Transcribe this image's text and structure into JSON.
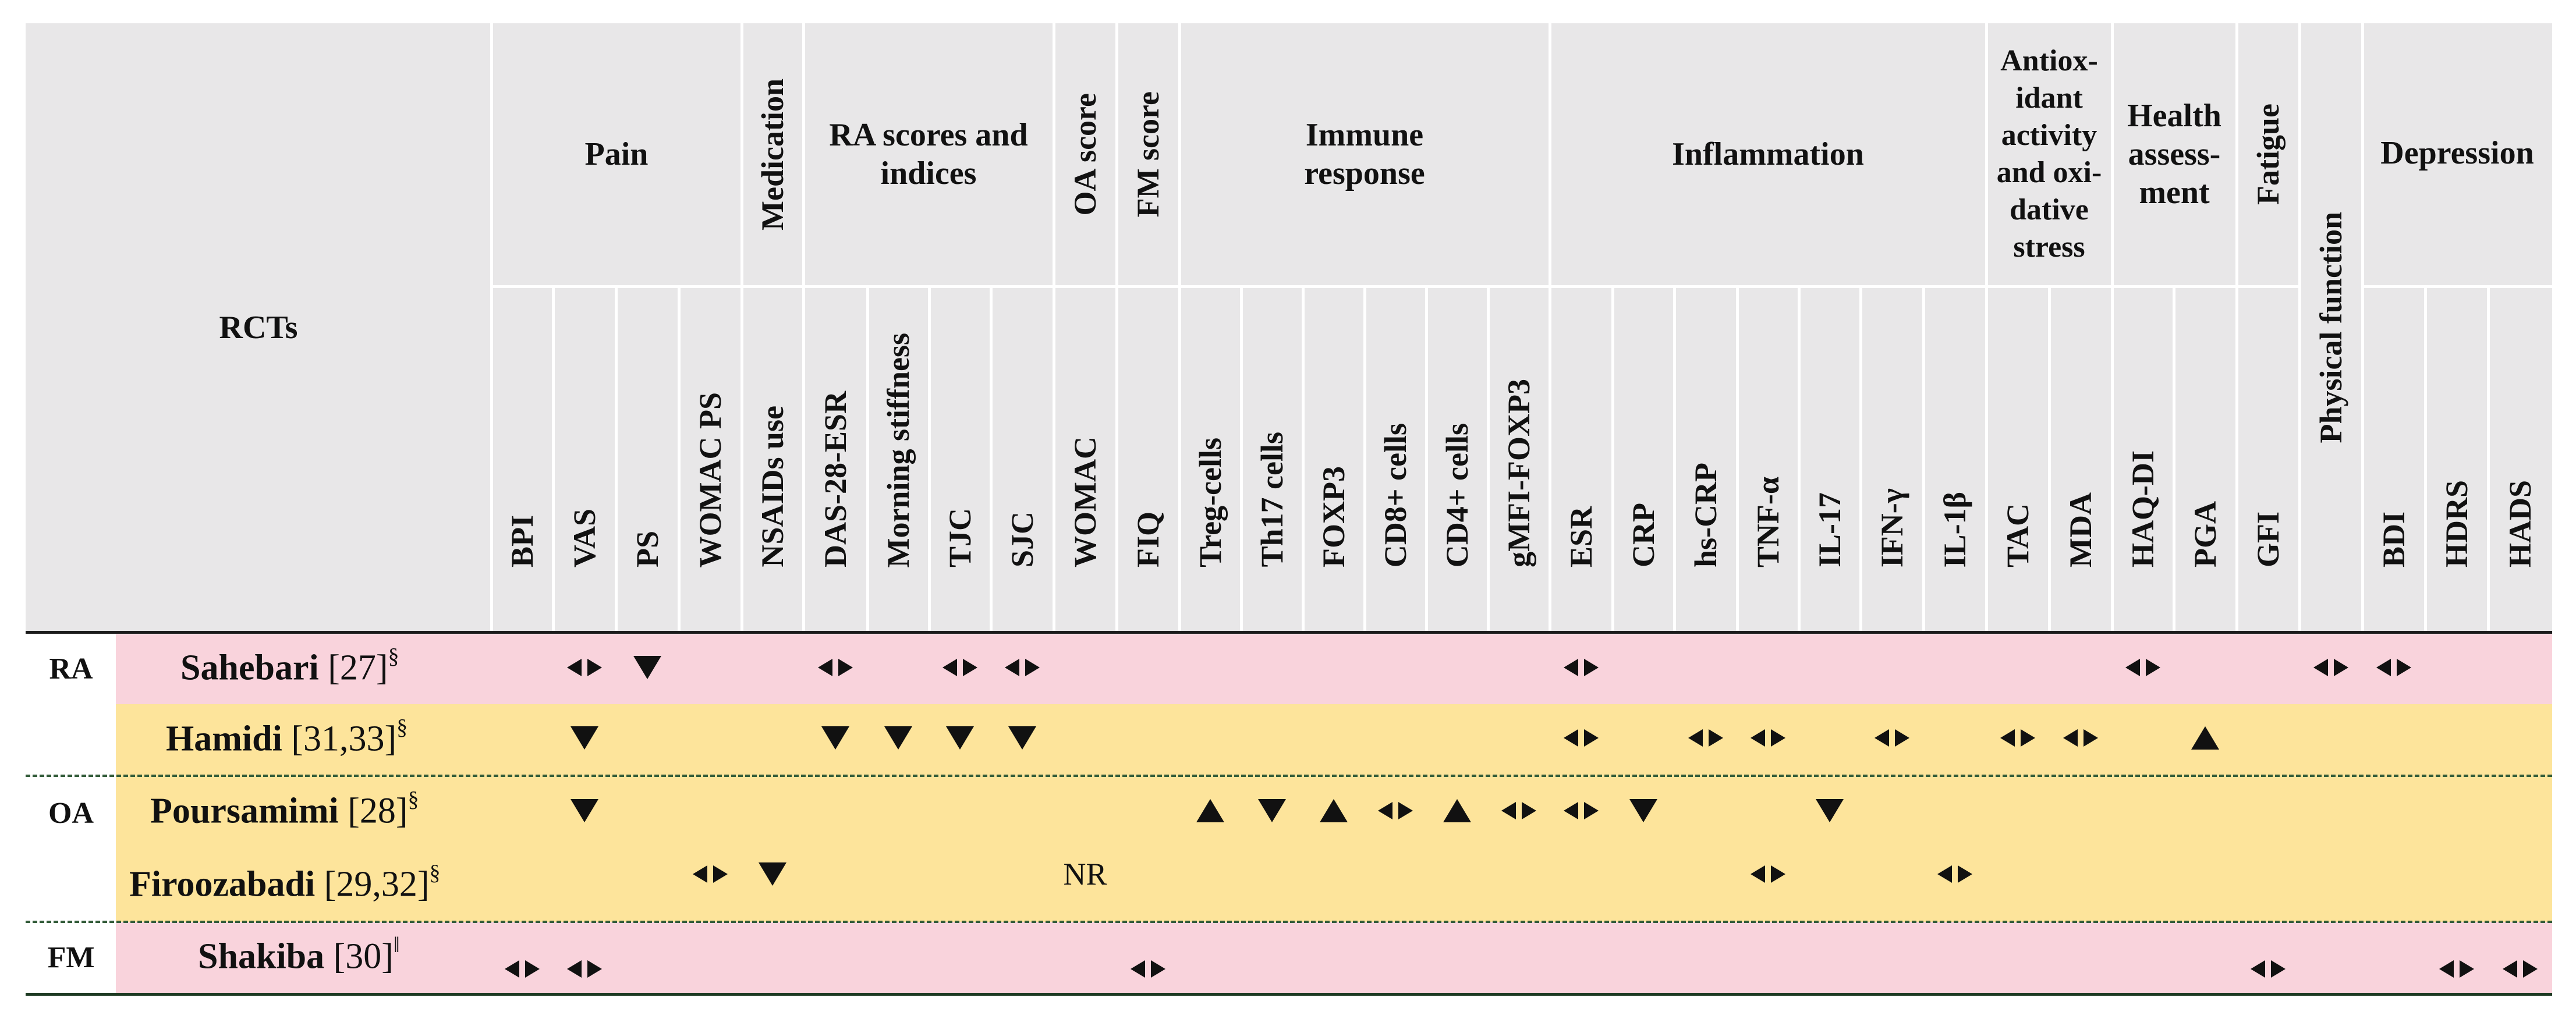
{
  "header": {
    "rcts_label": "RCTs",
    "groups": [
      {
        "key": "pain",
        "label": "Pain"
      },
      {
        "key": "medication",
        "label": "Medication"
      },
      {
        "key": "ra_scores",
        "label": "RA scores and indices"
      },
      {
        "key": "oa_score",
        "label": "OA score"
      },
      {
        "key": "fm_score",
        "label": "FM score"
      },
      {
        "key": "immune",
        "label": "Immune response"
      },
      {
        "key": "inflammation",
        "label": "Inflammation"
      },
      {
        "key": "antiox",
        "label": "Antiox- idant activity and oxi- dative stress"
      },
      {
        "key": "health",
        "label": "Health assess- ment"
      },
      {
        "key": "fatigue",
        "label": "Fatigue"
      },
      {
        "key": "physical",
        "label": "Physical function"
      },
      {
        "key": "depression",
        "label": "Depression"
      }
    ],
    "columns": [
      "BPI",
      "VAS",
      "PS",
      "WOMAC PS",
      "NSAIDs use",
      "DAS-28-ESR",
      "Morning stiffness",
      "TJC",
      "SJC",
      "WOMAC",
      "FIQ",
      "Treg-cells",
      "Th17 cells",
      "FOXP3",
      "CD8+ cells",
      "CD4+ cells",
      "gMFI-FOXP3",
      "ESR",
      "CRP",
      "hs-CRP",
      "TNF-α",
      "IL-17",
      "IFN-γ",
      "IL-1β",
      "TAC",
      "MDA",
      "HAQ-DI",
      "PGA",
      "GFI",
      "BDI",
      "HDRS",
      "HADS"
    ]
  },
  "groups": [
    {
      "label": "RA"
    },
    {
      "label": "OA"
    },
    {
      "label": "FM"
    }
  ],
  "rows": [
    {
      "name": "Sahebari",
      "ref": "[27]",
      "mark": "§"
    },
    {
      "name": "Hamidi",
      "ref": "[31,33]",
      "mark": "§"
    },
    {
      "name": "Poursamimi",
      "ref": "[28]",
      "mark": "§"
    },
    {
      "name": "Firoozabadi",
      "ref": "[29,32]",
      "mark": "§"
    },
    {
      "name": "Shakiba",
      "ref": "[30]",
      "mark": "‖"
    }
  ],
  "nr_text": "NR",
  "symbols": {
    "no_change": "◂▸",
    "decrease": "▼",
    "increase": "▲"
  },
  "findings": [
    {
      "row": 0,
      "col": "VAS",
      "effect": "no_change"
    },
    {
      "row": 0,
      "col": "PS",
      "effect": "decrease"
    },
    {
      "row": 0,
      "col": "DAS-28-ESR",
      "effect": "no_change"
    },
    {
      "row": 0,
      "col": "TJC",
      "effect": "no_change"
    },
    {
      "row": 0,
      "col": "SJC",
      "effect": "no_change"
    },
    {
      "row": 0,
      "col": "ESR",
      "effect": "no_change"
    },
    {
      "row": 0,
      "col": "HAQ-DI",
      "effect": "no_change"
    },
    {
      "row": 0,
      "col": "Physical function",
      "effect": "no_change"
    },
    {
      "row": 0,
      "col": "BDI",
      "effect": "no_change"
    },
    {
      "row": 1,
      "col": "VAS",
      "effect": "decrease"
    },
    {
      "row": 1,
      "col": "DAS-28-ESR",
      "effect": "decrease"
    },
    {
      "row": 1,
      "col": "Morning stiffness",
      "effect": "decrease"
    },
    {
      "row": 1,
      "col": "TJC",
      "effect": "decrease"
    },
    {
      "row": 1,
      "col": "SJC",
      "effect": "decrease"
    },
    {
      "row": 1,
      "col": "ESR",
      "effect": "no_change"
    },
    {
      "row": 1,
      "col": "hs-CRP",
      "effect": "no_change"
    },
    {
      "row": 1,
      "col": "TNF-α",
      "effect": "no_change"
    },
    {
      "row": 1,
      "col": "IFN-γ",
      "effect": "no_change"
    },
    {
      "row": 1,
      "col": "TAC",
      "effect": "no_change"
    },
    {
      "row": 1,
      "col": "MDA",
      "effect": "no_change"
    },
    {
      "row": 1,
      "col": "PGA",
      "effect": "increase"
    },
    {
      "row": 2,
      "col": "VAS",
      "effect": "decrease"
    },
    {
      "row": 2,
      "col": "Treg-cells",
      "effect": "increase"
    },
    {
      "row": 2,
      "col": "Th17 cells",
      "effect": "decrease"
    },
    {
      "row": 2,
      "col": "FOXP3",
      "effect": "increase"
    },
    {
      "row": 2,
      "col": "CD8+ cells",
      "effect": "no_change"
    },
    {
      "row": 2,
      "col": "CD4+ cells",
      "effect": "increase"
    },
    {
      "row": 2,
      "col": "gMFI-FOXP3",
      "effect": "no_change"
    },
    {
      "row": 2,
      "col": "ESR",
      "effect": "no_change"
    },
    {
      "row": 2,
      "col": "CRP",
      "effect": "decrease"
    },
    {
      "row": 2,
      "col": "IL-17",
      "effect": "decrease"
    },
    {
      "row": 3,
      "col": "WOMAC PS",
      "effect": "no_change"
    },
    {
      "row": 3,
      "col": "NSAIDs use",
      "effect": "decrease"
    },
    {
      "row": 3,
      "col": "WOMAC",
      "effect": "nr"
    },
    {
      "row": 3,
      "col": "TNF-α",
      "effect": "no_change"
    },
    {
      "row": 3,
      "col": "IL-1β",
      "effect": "no_change"
    },
    {
      "row": 4,
      "col": "BPI",
      "effect": "no_change"
    },
    {
      "row": 4,
      "col": "VAS",
      "effect": "no_change"
    },
    {
      "row": 4,
      "col": "FIQ",
      "effect": "no_change"
    },
    {
      "row": 4,
      "col": "GFI",
      "effect": "no_change"
    },
    {
      "row": 4,
      "col": "HDRS",
      "effect": "no_change"
    },
    {
      "row": 4,
      "col": "HADS",
      "effect": "no_change"
    }
  ],
  "colors": {
    "header_bg": "#e8e7e8",
    "pink": "#f9d3dc",
    "yellow": "#fde49b",
    "dash": "#335c3a"
  }
}
